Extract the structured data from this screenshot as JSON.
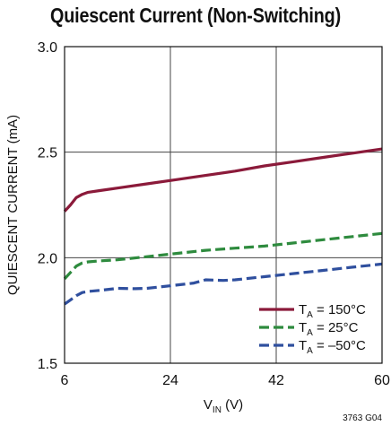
{
  "chart_data": {
    "type": "line",
    "title": "Quiescent Current (Non-Switching)",
    "xlabel_main": "V",
    "xlabel_sub": "IN",
    "xlabel_unit": " (V)",
    "ylabel": "QUIESCENT CURRENT (mA)",
    "xlim": [
      6,
      60
    ],
    "ylim": [
      1.5,
      3.0
    ],
    "xticks": [
      6,
      24,
      42,
      60
    ],
    "xtick_labels": [
      "6",
      "24",
      "42",
      "60"
    ],
    "yticks": [
      1.5,
      2.0,
      2.5,
      3.0
    ],
    "ytick_labels": [
      "1.5",
      "2.0",
      "2.5",
      "3.0"
    ],
    "grid": true,
    "legend_position": "bottom-right",
    "figure_code": "3763 G04",
    "series": [
      {
        "name_prefix": "T",
        "name_sub": "A",
        "name_suffix": " = 150°C",
        "color": "#8b1a3a",
        "dash": "solid",
        "x": [
          6,
          7,
          8,
          9,
          10,
          12,
          15,
          20,
          25,
          30,
          35,
          40,
          45,
          50,
          55,
          60
        ],
        "y": [
          2.22,
          2.25,
          2.285,
          2.3,
          2.31,
          2.318,
          2.33,
          2.35,
          2.37,
          2.39,
          2.41,
          2.435,
          2.455,
          2.475,
          2.495,
          2.515
        ]
      },
      {
        "name_prefix": "T",
        "name_sub": "A",
        "name_suffix": " = 25°C",
        "color": "#2e8b3e",
        "dash": "dashed",
        "x": [
          6,
          7,
          8,
          9,
          10,
          12,
          15,
          20,
          25,
          30,
          35,
          40,
          45,
          50,
          55,
          60
        ],
        "y": [
          1.9,
          1.93,
          1.96,
          1.975,
          1.98,
          1.985,
          1.99,
          2.005,
          2.02,
          2.035,
          2.045,
          2.055,
          2.07,
          2.085,
          2.1,
          2.115
        ]
      },
      {
        "name_prefix": "T",
        "name_sub": "A",
        "name_suffix": " = –50°C",
        "color": "#2f4f9e",
        "dash": "dashed",
        "x": [
          6,
          7,
          8,
          9,
          10,
          12,
          15,
          18,
          20,
          25,
          28,
          30,
          33,
          35,
          40,
          45,
          50,
          55,
          60
        ],
        "y": [
          1.78,
          1.8,
          1.82,
          1.835,
          1.84,
          1.845,
          1.855,
          1.853,
          1.855,
          1.87,
          1.88,
          1.895,
          1.892,
          1.895,
          1.91,
          1.925,
          1.94,
          1.955,
          1.97
        ]
      }
    ]
  }
}
